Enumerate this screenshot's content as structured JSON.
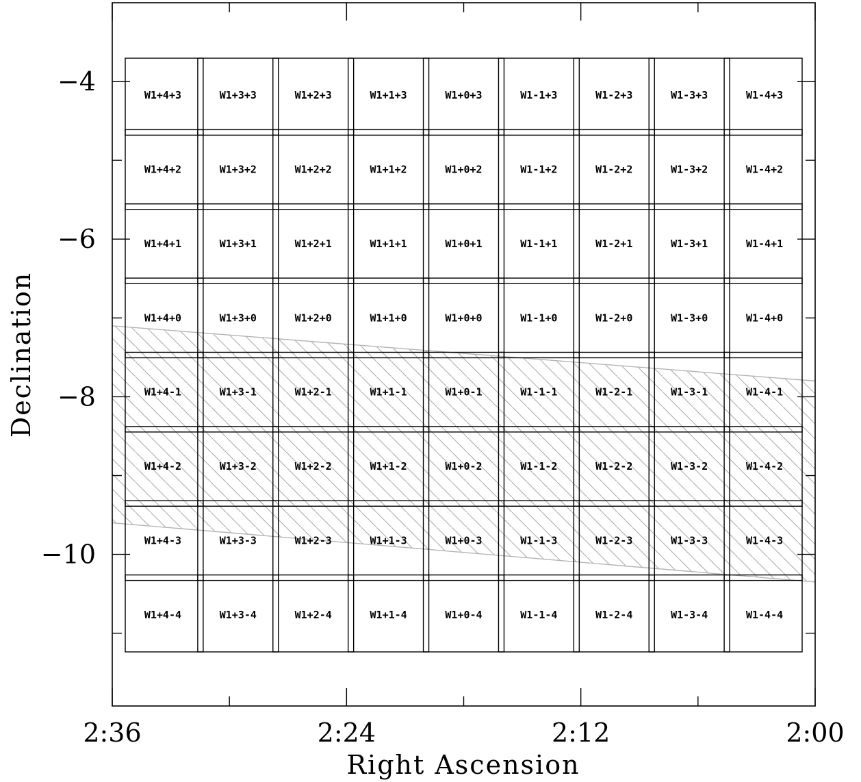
{
  "chart_data": {
    "type": "diagram",
    "xlabel": "Right Ascension",
    "ylabel": "Declination",
    "x_unit": "RA (h:mm)",
    "xlim": [
      "2:36",
      "2:00"
    ],
    "ylim": [
      -11.9,
      -3.5
    ],
    "x_ticks": [
      {
        "label": "2:36",
        "major": true
      },
      {
        "label": "",
        "major": false
      },
      {
        "label": "2:24",
        "major": true
      },
      {
        "label": "",
        "major": false
      },
      {
        "label": "2:12",
        "major": true
      },
      {
        "label": "",
        "major": false
      },
      {
        "label": "2:00",
        "major": true
      }
    ],
    "y_ticks": [
      {
        "value": -4,
        "label": "−4",
        "major": true
      },
      {
        "value": -5,
        "label": "",
        "major": false
      },
      {
        "value": -6,
        "label": "−6",
        "major": true
      },
      {
        "value": -7,
        "label": "",
        "major": false
      },
      {
        "value": -8,
        "label": "−8",
        "major": true
      },
      {
        "value": -9,
        "label": "",
        "major": false
      },
      {
        "value": -10,
        "label": "−10",
        "major": true
      },
      {
        "value": -11,
        "label": "",
        "major": false
      }
    ],
    "tile_grid": {
      "columns": [
        "+4",
        "+3",
        "+2",
        "+1",
        "+0",
        "-1",
        "-2",
        "-3",
        "-4"
      ],
      "rows": [
        [
          "W1+4+3",
          "W1+3+3",
          "W1+2+3",
          "W1+1+3",
          "W1+0+3",
          "W1-1+3",
          "W1-2+3",
          "W1-3+3",
          "W1-4+3"
        ],
        [
          "W1+4+2",
          "W1+3+2",
          "W1+2+2",
          "W1+1+2",
          "W1+0+2",
          "W1-1+2",
          "W1-2+2",
          "W1-3+2",
          "W1-4+2"
        ],
        [
          "W1+4+1",
          "W1+3+1",
          "W1+2+1",
          "W1+1+1",
          "W1+0+1",
          "W1-1+1",
          "W1-2+1",
          "W1-3+1",
          "W1-4+1"
        ],
        [
          "W1+4+0",
          "W1+3+0",
          "W1+2+0",
          "W1+1+0",
          "W1+0+0",
          "W1-1+0",
          "W1-2+0",
          "W1-3+0",
          "W1-4+0"
        ],
        [
          "W1+4-1",
          "W1+3-1",
          "W1+2-1",
          "W1+1-1",
          "W1+0-1",
          "W1-1-1",
          "W1-2-1",
          "W1-3-1",
          "W1-4-1"
        ],
        [
          "W1+4-2",
          "W1+3-2",
          "W1+2-2",
          "W1+1-2",
          "W1+0-2",
          "W1-1-2",
          "W1-2-2",
          "W1-3-2",
          "W1-4-2"
        ],
        [
          "W1+4-3",
          "W1+3-3",
          "W1+2-3",
          "W1+1-3",
          "W1+0-3",
          "W1-1-3",
          "W1-2-3",
          "W1-3-3",
          "W1-4-3"
        ],
        [
          "W1+4-4",
          "W1+3-4",
          "W1+2-4",
          "W1+1-4",
          "W1+0-4",
          "W1-1-4",
          "W1-2-4",
          "W1-3-4",
          "W1-4-4"
        ]
      ]
    },
    "hatched_band": {
      "upper_dec_at_left": -7.1,
      "upper_dec_at_right": -7.8,
      "lower_dec_at_left": -9.6,
      "lower_dec_at_right": -10.35,
      "color": "#b4b4b4",
      "style": "diagonal hatch"
    },
    "colors": {
      "frame": "#000000",
      "band": "#b4b4b4",
      "background": "#ffffff"
    }
  }
}
